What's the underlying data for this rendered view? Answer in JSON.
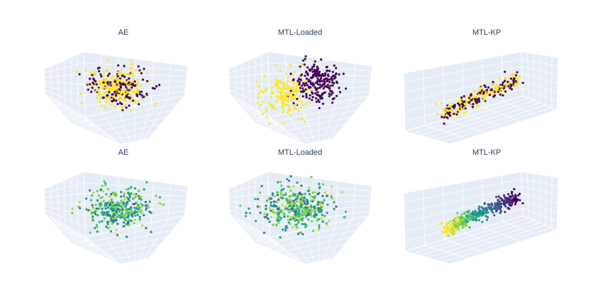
{
  "figure": {
    "row1_titles": [
      "AE",
      "MTL-Loaded",
      "MTL-KP"
    ],
    "row2_titles": [
      "AE",
      "MTL-Loaded",
      "MTL-KP"
    ]
  },
  "chart_data": [
    {
      "type": "scatter",
      "subtype": "scatter3d",
      "title": "AE",
      "color_mode": "binary",
      "colors": [
        "#440154",
        "#fde725"
      ],
      "grid": true,
      "axis_tick_labels": "hidden",
      "legend": "none",
      "note": "point cloud, values not readable"
    },
    {
      "type": "scatter",
      "subtype": "scatter3d",
      "title": "MTL-Loaded",
      "color_mode": "binary",
      "colors": [
        "#440154",
        "#fde725"
      ],
      "grid": true,
      "axis_tick_labels": "hidden",
      "legend": "none"
    },
    {
      "type": "scatter",
      "subtype": "scatter3d",
      "title": "MTL-KP",
      "color_mode": "binary",
      "colors": [
        "#440154",
        "#fde725"
      ],
      "grid": true,
      "axis_tick_labels": "hidden",
      "legend": "none"
    },
    {
      "type": "scatter",
      "subtype": "scatter3d",
      "title": "AE",
      "color_mode": "continuous",
      "colorscale": "viridis",
      "grid": true,
      "axis_tick_labels": "hidden",
      "legend": "none"
    },
    {
      "type": "scatter",
      "subtype": "scatter3d",
      "title": "MTL-Loaded",
      "color_mode": "continuous",
      "colorscale": "viridis",
      "grid": true,
      "axis_tick_labels": "hidden",
      "legend": "none"
    },
    {
      "type": "scatter",
      "subtype": "scatter3d",
      "title": "MTL-KP",
      "color_mode": "continuous",
      "colorscale": "viridis",
      "grid": true,
      "axis_tick_labels": "hidden",
      "legend": "none"
    }
  ]
}
